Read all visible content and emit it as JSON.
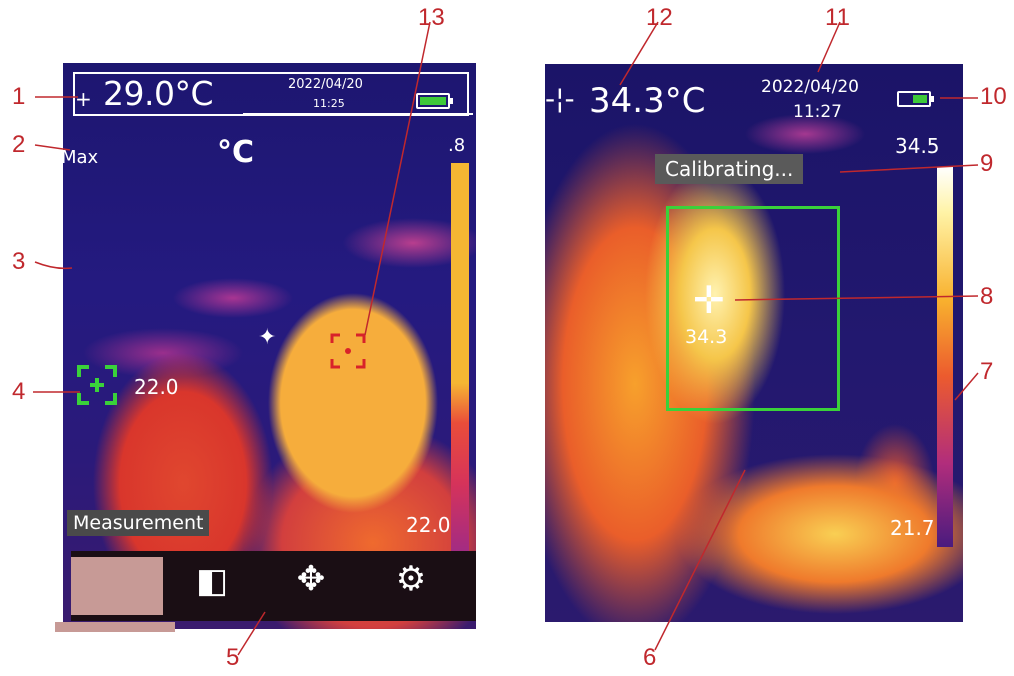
{
  "left_screen": {
    "temperature": "29.0°C",
    "date": "2022/04/20",
    "time": "11:25",
    "mode": "Max",
    "unit": "°C",
    "scale_max": ".8",
    "scale_min": "22.0",
    "spot_value": "22.0",
    "measure_label": "Measurement",
    "toolbar": {
      "palette_icon": "palette-icon",
      "move_icon": "move-icon",
      "settings_icon": "gear-icon"
    }
  },
  "right_screen": {
    "temperature": "34.3°C",
    "date": "2022/04/20",
    "time": "11:27",
    "status": "Calibrating...",
    "scale_max": "34.5",
    "scale_min": "21.7",
    "center_value": "34.3"
  },
  "callouts": [
    "1",
    "2",
    "3",
    "4",
    "5",
    "6",
    "7",
    "8",
    "9",
    "10",
    "11",
    "12",
    "13"
  ],
  "colors": {
    "callout": "#c0282d",
    "roi": "#3ad13a",
    "battery": "#3ec93a"
  }
}
